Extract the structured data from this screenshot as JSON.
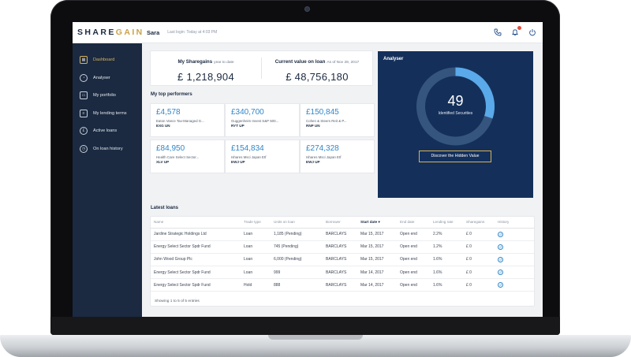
{
  "app": {
    "logo_a": "SHARE",
    "logo_b": "GAIN",
    "user": "Sara",
    "last_login": "Last login: Today at 4:03 PM"
  },
  "header_icons": [
    "phone-icon",
    "bell-icon",
    "power-icon"
  ],
  "sidebar": {
    "items": [
      {
        "label": "Dashboard",
        "icon": "grid-icon",
        "active": true
      },
      {
        "label": "Analyser",
        "icon": "pie-icon",
        "active": false
      },
      {
        "label": "My portfolio",
        "icon": "briefcase-icon",
        "active": false
      },
      {
        "label": "My lending terms",
        "icon": "terms-icon",
        "active": false
      },
      {
        "label": "Active loans",
        "icon": "loans-icon",
        "active": false
      },
      {
        "label": "On loan history",
        "icon": "history-icon",
        "active": false
      }
    ]
  },
  "summary": {
    "sharegains_title": "My Sharegains",
    "sharegains_sub": "year to date",
    "sharegains_value": "£ 1,218,904",
    "onloan_title": "Current value on loan",
    "onloan_sub": "As of Nov 28, 2017",
    "onloan_value": "£ 48,756,180"
  },
  "performers": {
    "title": "My top performers",
    "items": [
      {
        "value": "£4,578",
        "name": "Eaton Vance Tax-Managed G...",
        "ticker": "EXG UN"
      },
      {
        "value": "£340,700",
        "name": "Guggenheim Invest S&P 500...",
        "ticker": "RYT UP"
      },
      {
        "value": "£150,845",
        "name": "Cohen & Steers Reit & P...",
        "ticker": "RNP UN"
      },
      {
        "value": "£84,950",
        "name": "Health Care Select Sector...",
        "ticker": "XLV UP"
      },
      {
        "value": "£154,834",
        "name": "Ishares Msci Japan Etf",
        "ticker": "EWJ UP"
      },
      {
        "value": "£274,328",
        "name": "Ishares Msci Japan Etf",
        "ticker": "EWJ UP"
      }
    ]
  },
  "analyser": {
    "title": "Analyser",
    "count": "49",
    "count_label": "Identified Securities",
    "button": "Discover the Hidden Value",
    "progress": 0.3
  },
  "loans": {
    "title": "Latest loans",
    "columns": [
      "Name",
      "Trade type",
      "Units on loan",
      "Borrower",
      "Start date",
      "End date",
      "Lending rate",
      "Sharegains",
      "History"
    ],
    "rows": [
      [
        "Jardine Strategic Holdings Ltd",
        "Loan",
        "1,185 (Pending)",
        "BARCLAYS",
        "Mar 15, 2017",
        "Open end",
        "2.2%",
        "£ 0"
      ],
      [
        "Energy Select Sector Spdr Fund",
        "Loan",
        "745 (Pending)",
        "BARCLAYS",
        "Mar 15, 2017",
        "Open end",
        "1.2%",
        "£ 0"
      ],
      [
        "John Wood Group Plc",
        "Loan",
        "6,000 (Pending)",
        "BARCLAYS",
        "Mar 15, 2017",
        "Open end",
        "1.6%",
        "£ 0"
      ],
      [
        "Energy Select Sector Spdr Fund",
        "Loan",
        "999",
        "BARCLAYS",
        "Mar 14, 2017",
        "Open end",
        "1.6%",
        "£ 0"
      ],
      [
        "Energy Select Sector Spdr Fund",
        "Hold",
        "888",
        "BARCLAYS",
        "Mar 14, 2017",
        "Open end",
        "1.6%",
        "£ 0"
      ]
    ],
    "footer": "Showing 1 to 5 of 5 entries"
  },
  "colors": {
    "navy": "#1b2a41",
    "accent_gold": "#d7b35c",
    "accent_blue": "#2f86c9",
    "analyser_bg": "#14305a"
  }
}
